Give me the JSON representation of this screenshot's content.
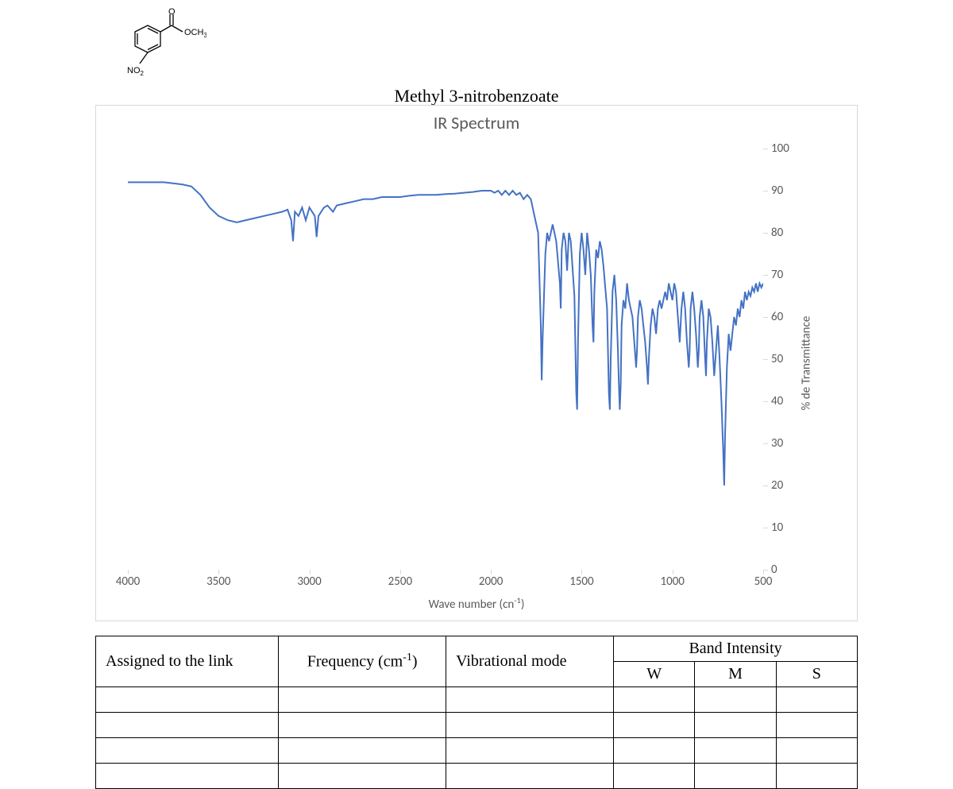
{
  "compound_name": "Methyl 3-nitrobenzoate",
  "molecule": {
    "label_och3": "OCH",
    "label_och3_sub": "3",
    "label_no2": "NO",
    "label_no2_sub": "2",
    "label_o": "O"
  },
  "chart": {
    "title": "IR Spectrum",
    "type": "line",
    "line_color": "#4472c4",
    "line_width": 2,
    "background_color": "#ffffff",
    "border_color": "#d9d9d9",
    "tick_font_color": "#595959",
    "tick_font_size": 15,
    "title_font_size": 22,
    "x_axis": {
      "label": "Wave number (cn",
      "label_sup": "-1",
      "label_close": ")",
      "min": 4000,
      "max": 500,
      "ticks": [
        4000,
        3500,
        3000,
        2500,
        2000,
        1500,
        1000,
        500
      ]
    },
    "y_axis": {
      "label": "% de Transmittance",
      "min": 0,
      "max": 100,
      "ticks": [
        100,
        90,
        80,
        70,
        60,
        50,
        40,
        30,
        20,
        10,
        0
      ]
    },
    "series": [
      {
        "x": 4000,
        "y": 92
      },
      {
        "x": 3900,
        "y": 92
      },
      {
        "x": 3800,
        "y": 92
      },
      {
        "x": 3700,
        "y": 91.5
      },
      {
        "x": 3650,
        "y": 91
      },
      {
        "x": 3600,
        "y": 89
      },
      {
        "x": 3550,
        "y": 86
      },
      {
        "x": 3500,
        "y": 84
      },
      {
        "x": 3450,
        "y": 83
      },
      {
        "x": 3400,
        "y": 82.5
      },
      {
        "x": 3350,
        "y": 83
      },
      {
        "x": 3300,
        "y": 83.5
      },
      {
        "x": 3250,
        "y": 84
      },
      {
        "x": 3200,
        "y": 84.5
      },
      {
        "x": 3150,
        "y": 85
      },
      {
        "x": 3120,
        "y": 85.5
      },
      {
        "x": 3100,
        "y": 83
      },
      {
        "x": 3090,
        "y": 78
      },
      {
        "x": 3080,
        "y": 85
      },
      {
        "x": 3060,
        "y": 84
      },
      {
        "x": 3040,
        "y": 86
      },
      {
        "x": 3020,
        "y": 83
      },
      {
        "x": 3000,
        "y": 86
      },
      {
        "x": 2970,
        "y": 84
      },
      {
        "x": 2960,
        "y": 79
      },
      {
        "x": 2950,
        "y": 84
      },
      {
        "x": 2920,
        "y": 86
      },
      {
        "x": 2900,
        "y": 86.5
      },
      {
        "x": 2870,
        "y": 85
      },
      {
        "x": 2850,
        "y": 86.5
      },
      {
        "x": 2800,
        "y": 87
      },
      {
        "x": 2750,
        "y": 87.5
      },
      {
        "x": 2700,
        "y": 88
      },
      {
        "x": 2650,
        "y": 88
      },
      {
        "x": 2600,
        "y": 88.5
      },
      {
        "x": 2550,
        "y": 88.5
      },
      {
        "x": 2500,
        "y": 88.5
      },
      {
        "x": 2450,
        "y": 88.8
      },
      {
        "x": 2400,
        "y": 89
      },
      {
        "x": 2350,
        "y": 89
      },
      {
        "x": 2300,
        "y": 89
      },
      {
        "x": 2250,
        "y": 89.2
      },
      {
        "x": 2200,
        "y": 89.3
      },
      {
        "x": 2150,
        "y": 89.5
      },
      {
        "x": 2100,
        "y": 89.7
      },
      {
        "x": 2050,
        "y": 90
      },
      {
        "x": 2000,
        "y": 90
      },
      {
        "x": 1980,
        "y": 89.5
      },
      {
        "x": 1960,
        "y": 90
      },
      {
        "x": 1940,
        "y": 89
      },
      {
        "x": 1920,
        "y": 90
      },
      {
        "x": 1900,
        "y": 89
      },
      {
        "x": 1880,
        "y": 90
      },
      {
        "x": 1860,
        "y": 89
      },
      {
        "x": 1840,
        "y": 89.5
      },
      {
        "x": 1820,
        "y": 88
      },
      {
        "x": 1800,
        "y": 89
      },
      {
        "x": 1780,
        "y": 88
      },
      {
        "x": 1770,
        "y": 86
      },
      {
        "x": 1760,
        "y": 84
      },
      {
        "x": 1740,
        "y": 80
      },
      {
        "x": 1725,
        "y": 58
      },
      {
        "x": 1720,
        "y": 45
      },
      {
        "x": 1715,
        "y": 55
      },
      {
        "x": 1700,
        "y": 75
      },
      {
        "x": 1690,
        "y": 80
      },
      {
        "x": 1680,
        "y": 78
      },
      {
        "x": 1660,
        "y": 82
      },
      {
        "x": 1640,
        "y": 78
      },
      {
        "x": 1620,
        "y": 68
      },
      {
        "x": 1615,
        "y": 62
      },
      {
        "x": 1610,
        "y": 76
      },
      {
        "x": 1600,
        "y": 80
      },
      {
        "x": 1590,
        "y": 78
      },
      {
        "x": 1580,
        "y": 71
      },
      {
        "x": 1570,
        "y": 80
      },
      {
        "x": 1560,
        "y": 78
      },
      {
        "x": 1540,
        "y": 65
      },
      {
        "x": 1530,
        "y": 42
      },
      {
        "x": 1525,
        "y": 38
      },
      {
        "x": 1520,
        "y": 55
      },
      {
        "x": 1510,
        "y": 75
      },
      {
        "x": 1500,
        "y": 80
      },
      {
        "x": 1490,
        "y": 76
      },
      {
        "x": 1480,
        "y": 70
      },
      {
        "x": 1470,
        "y": 80
      },
      {
        "x": 1460,
        "y": 76
      },
      {
        "x": 1450,
        "y": 70
      },
      {
        "x": 1440,
        "y": 58
      },
      {
        "x": 1435,
        "y": 54
      },
      {
        "x": 1430,
        "y": 66
      },
      {
        "x": 1420,
        "y": 76
      },
      {
        "x": 1410,
        "y": 74
      },
      {
        "x": 1400,
        "y": 78
      },
      {
        "x": 1390,
        "y": 76
      },
      {
        "x": 1380,
        "y": 72
      },
      {
        "x": 1360,
        "y": 62
      },
      {
        "x": 1350,
        "y": 42
      },
      {
        "x": 1345,
        "y": 38
      },
      {
        "x": 1340,
        "y": 50
      },
      {
        "x": 1330,
        "y": 66
      },
      {
        "x": 1320,
        "y": 70
      },
      {
        "x": 1310,
        "y": 64
      },
      {
        "x": 1300,
        "y": 52
      },
      {
        "x": 1295,
        "y": 44
      },
      {
        "x": 1290,
        "y": 38
      },
      {
        "x": 1285,
        "y": 44
      },
      {
        "x": 1280,
        "y": 58
      },
      {
        "x": 1270,
        "y": 64
      },
      {
        "x": 1260,
        "y": 62
      },
      {
        "x": 1250,
        "y": 68
      },
      {
        "x": 1240,
        "y": 64
      },
      {
        "x": 1220,
        "y": 60
      },
      {
        "x": 1210,
        "y": 54
      },
      {
        "x": 1200,
        "y": 48
      },
      {
        "x": 1195,
        "y": 52
      },
      {
        "x": 1190,
        "y": 60
      },
      {
        "x": 1180,
        "y": 64
      },
      {
        "x": 1170,
        "y": 62
      },
      {
        "x": 1160,
        "y": 58
      },
      {
        "x": 1150,
        "y": 54
      },
      {
        "x": 1140,
        "y": 48
      },
      {
        "x": 1135,
        "y": 44
      },
      {
        "x": 1130,
        "y": 50
      },
      {
        "x": 1120,
        "y": 58
      },
      {
        "x": 1110,
        "y": 62
      },
      {
        "x": 1100,
        "y": 60
      },
      {
        "x": 1090,
        "y": 56
      },
      {
        "x": 1080,
        "y": 62
      },
      {
        "x": 1070,
        "y": 64
      },
      {
        "x": 1060,
        "y": 62
      },
      {
        "x": 1050,
        "y": 64
      },
      {
        "x": 1040,
        "y": 66
      },
      {
        "x": 1030,
        "y": 64
      },
      {
        "x": 1020,
        "y": 68
      },
      {
        "x": 1010,
        "y": 66
      },
      {
        "x": 1000,
        "y": 64
      },
      {
        "x": 990,
        "y": 68
      },
      {
        "x": 980,
        "y": 66
      },
      {
        "x": 970,
        "y": 60
      },
      {
        "x": 960,
        "y": 54
      },
      {
        "x": 950,
        "y": 62
      },
      {
        "x": 940,
        "y": 66
      },
      {
        "x": 930,
        "y": 62
      },
      {
        "x": 920,
        "y": 54
      },
      {
        "x": 910,
        "y": 48
      },
      {
        "x": 905,
        "y": 52
      },
      {
        "x": 900,
        "y": 62
      },
      {
        "x": 890,
        "y": 66
      },
      {
        "x": 880,
        "y": 62
      },
      {
        "x": 870,
        "y": 56
      },
      {
        "x": 860,
        "y": 48
      },
      {
        "x": 855,
        "y": 52
      },
      {
        "x": 850,
        "y": 60
      },
      {
        "x": 840,
        "y": 64
      },
      {
        "x": 830,
        "y": 60
      },
      {
        "x": 820,
        "y": 50
      },
      {
        "x": 815,
        "y": 46
      },
      {
        "x": 810,
        "y": 54
      },
      {
        "x": 800,
        "y": 62
      },
      {
        "x": 790,
        "y": 60
      },
      {
        "x": 780,
        "y": 54
      },
      {
        "x": 770,
        "y": 46
      },
      {
        "x": 760,
        "y": 52
      },
      {
        "x": 750,
        "y": 58
      },
      {
        "x": 740,
        "y": 50
      },
      {
        "x": 730,
        "y": 40
      },
      {
        "x": 720,
        "y": 28
      },
      {
        "x": 715,
        "y": 20
      },
      {
        "x": 710,
        "y": 32
      },
      {
        "x": 700,
        "y": 48
      },
      {
        "x": 690,
        "y": 56
      },
      {
        "x": 680,
        "y": 52
      },
      {
        "x": 670,
        "y": 56
      },
      {
        "x": 660,
        "y": 60
      },
      {
        "x": 650,
        "y": 58
      },
      {
        "x": 640,
        "y": 62
      },
      {
        "x": 630,
        "y": 60
      },
      {
        "x": 620,
        "y": 64
      },
      {
        "x": 610,
        "y": 62
      },
      {
        "x": 600,
        "y": 66
      },
      {
        "x": 590,
        "y": 64
      },
      {
        "x": 580,
        "y": 66
      },
      {
        "x": 570,
        "y": 65
      },
      {
        "x": 560,
        "y": 67
      },
      {
        "x": 550,
        "y": 66
      },
      {
        "x": 540,
        "y": 68
      },
      {
        "x": 530,
        "y": 66
      },
      {
        "x": 520,
        "y": 68
      },
      {
        "x": 510,
        "y": 67
      },
      {
        "x": 500,
        "y": 68
      }
    ]
  },
  "table": {
    "headers": {
      "assigned": "Assigned to the link",
      "frequency": "Frequency (cm",
      "frequency_sup": "-1",
      "frequency_close": ")",
      "mode": "Vibrational mode",
      "intensity": "Band Intensity",
      "w": "W",
      "m": "M",
      "s": "S"
    },
    "col_widths": [
      "24%",
      "22%",
      "22%",
      "10.67%",
      "10.67%",
      "10.67%"
    ],
    "empty_rows": 4
  }
}
